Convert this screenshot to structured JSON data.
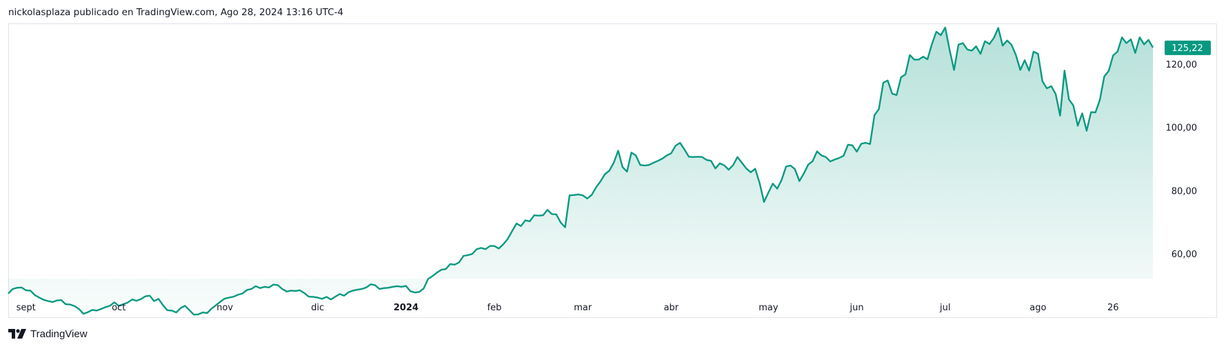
{
  "header": {
    "caption": "nickolasplaza publicado en TradingView.com, Ago 28, 2024 13:16 UTC-4"
  },
  "footer": {
    "brand": "TradingView"
  },
  "colors": {
    "line": "#089981",
    "fill_top": "#089981",
    "price_label_bg": "#089981"
  },
  "chart_data": {
    "type": "area",
    "x_labels": [
      {
        "text": "sept",
        "bold": false,
        "index": 4
      },
      {
        "text": "oct",
        "bold": false,
        "index": 25
      },
      {
        "text": "nov",
        "bold": false,
        "index": 49
      },
      {
        "text": "dic",
        "bold": false,
        "index": 70
      },
      {
        "text": "2024",
        "bold": true,
        "index": 90
      },
      {
        "text": "feb",
        "bold": false,
        "index": 110
      },
      {
        "text": "mar",
        "bold": false,
        "index": 130
      },
      {
        "text": "abr",
        "bold": false,
        "index": 150
      },
      {
        "text": "may",
        "bold": false,
        "index": 172
      },
      {
        "text": "jun",
        "bold": false,
        "index": 192
      },
      {
        "text": "jul",
        "bold": false,
        "index": 212
      },
      {
        "text": "ago",
        "bold": false,
        "index": 233
      },
      {
        "text": "26",
        "bold": false,
        "index": 250
      }
    ],
    "y_ticks": [
      "60,00",
      "80,00",
      "100,00",
      "120,00"
    ],
    "y_tick_values": [
      60,
      80,
      100,
      120
    ],
    "ylim": [
      40,
      131.5
    ],
    "last_price": 125.22,
    "last_price_label": "125,22",
    "values": [
      47.5,
      48.9,
      49.3,
      49.4,
      48.5,
      48.4,
      47,
      46.2,
      45.5,
      45.1,
      44.8,
      45.3,
      45.4,
      44.1,
      44,
      43.5,
      42.6,
      41.1,
      41.6,
      42.3,
      42.1,
      42.6,
      43.2,
      43.6,
      44.7,
      43.6,
      44.1,
      44.6,
      45.6,
      45.2,
      45.7,
      46.6,
      46.8,
      45.1,
      45.8,
      43.8,
      42.2,
      42.1,
      41.5,
      42.9,
      43.6,
      42.2,
      40.8,
      40.9,
      41.5,
      41.3,
      42.7,
      43.8,
      44.9,
      45.9,
      46.2,
      46.5,
      47.1,
      47.5,
      48.6,
      48.9,
      49.8,
      49.2,
      49.6,
      49.4,
      50.3,
      50.1,
      48.9,
      48.1,
      48.4,
      48.3,
      48.5,
      47.6,
      46.5,
      46.4,
      46.2,
      45.8,
      46.4,
      45.6,
      46.5,
      47.3,
      46.8,
      47.9,
      48.4,
      48.7,
      48.9,
      49.4,
      50.4,
      50.1,
      48.9,
      49.2,
      49.3,
      49.6,
      49.8,
      49.6,
      49.9,
      48.2,
      47.8,
      48,
      49.1,
      52.1,
      53,
      54.1,
      55,
      55.2,
      56.8,
      56.6,
      57.3,
      59.4,
      59.6,
      60,
      61.5,
      61.9,
      61.5,
      62.5,
      62.5,
      61.7,
      63,
      64.7,
      67.2,
      69.6,
      68.8,
      70.6,
      70.3,
      72.2,
      72.1,
      72.2,
      73.9,
      72.6,
      72.5,
      69.9,
      68.4,
      78.5,
      78.6,
      78.8,
      78.5,
      77.5,
      78.6,
      81,
      82.9,
      85.2,
      86.3,
      88.8,
      92.6,
      87.4,
      86,
      92,
      91.1,
      88.1,
      87.9,
      88.1,
      88.8,
      89.4,
      90.1,
      91.1,
      91.8,
      94.2,
      95.1,
      93,
      90.7,
      90.6,
      90.7,
      90.6,
      89.7,
      89.4,
      87,
      88.6,
      88,
      86.6,
      88,
      90.6,
      88.8,
      87,
      85.8,
      86.9,
      82.4,
      76.4,
      79.4,
      82.2,
      80.6,
      83.4,
      87.6,
      87.9,
      86.8,
      83,
      85.4,
      88.2,
      89.3,
      92.4,
      91.1,
      90.6,
      89.2,
      89.8,
      90.3,
      91,
      94.5,
      94.3,
      92.3,
      94.8,
      95.1,
      94.7,
      103.8,
      105.8,
      114.1,
      114.8,
      110.6,
      110.2,
      115.8,
      116.7,
      122.8,
      121.4,
      121.4,
      122.3,
      121.5,
      126.3,
      130.2,
      129.1,
      131.5,
      124.4,
      118.1,
      126.1,
      126.6,
      124.6,
      124.2,
      125.6,
      123.2,
      127.2,
      126.3,
      128.2,
      131.4,
      125.8,
      127.4,
      126.1,
      122.8,
      118.1,
      121.2,
      117.9,
      123.9,
      123.2,
      114.5,
      112.3,
      113,
      110.5,
      103.7,
      117.9,
      108.8,
      106.9,
      100.5,
      104.4,
      98.9,
      104.8,
      104.7,
      108.7,
      116.1,
      117.8,
      122.7,
      123.9,
      128.4,
      126.6,
      127.8,
      123.5,
      128.4,
      126.2,
      127.6,
      125.2
    ]
  }
}
